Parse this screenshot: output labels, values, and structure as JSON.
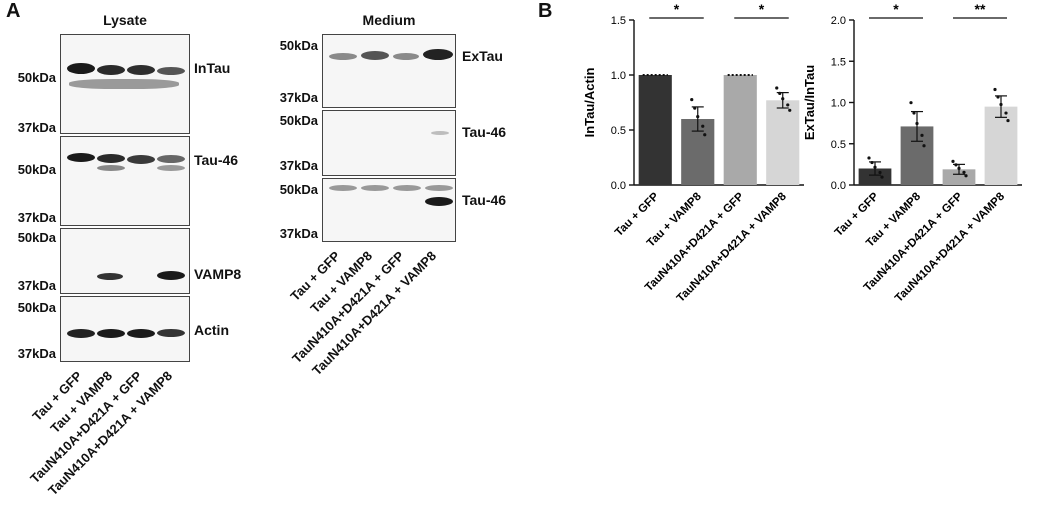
{
  "panel_a": {
    "letter": "A",
    "lysate": {
      "title": "Lysate",
      "blots": [
        {
          "label": "InTau",
          "mw": [
            "50kDa",
            "37kDa"
          ]
        },
        {
          "label": "Tau-46",
          "mw": [
            "50kDa",
            "37kDa"
          ]
        },
        {
          "label": "VAMP8",
          "mw": [
            "50kDa",
            "37kDa"
          ]
        },
        {
          "label": "Actin",
          "mw": [
            "50kDa",
            "37kDa"
          ]
        }
      ],
      "lanes": [
        "Tau + GFP",
        "Tau + VAMP8",
        "TauN410A+D421A + GFP",
        "TauN410A+D421A + VAMP8"
      ]
    },
    "medium": {
      "title": "Medium",
      "blots": [
        {
          "label": "ExTau",
          "mw": [
            "50kDa",
            "37kDa"
          ]
        },
        {
          "label": "Tau-46",
          "mw": [
            "50kDa",
            "37kDa"
          ]
        },
        {
          "label": "Tau-46",
          "mw": [
            "50kDa",
            "37kDa"
          ]
        }
      ],
      "lanes": [
        "Tau + GFP",
        "Tau + VAMP8",
        "TauN410A+D421A + GFP",
        "TauN410A+D421A + VAMP8"
      ]
    }
  },
  "panel_b": {
    "letter": "B"
  },
  "chart_data": [
    {
      "type": "bar",
      "ylabel": "InTau/Actin",
      "ylim": [
        0,
        1.5
      ],
      "yticks": [
        "0.0",
        "0.5",
        "1.0",
        "1.5"
      ],
      "categories": [
        "Tau + GFP",
        "Tau + VAMP8",
        "TauN410A+D421A + GFP",
        "TauN410A+D421A + VAMP8"
      ],
      "values": [
        1.0,
        0.6,
        1.0,
        0.77
      ],
      "errors": [
        0,
        0.11,
        0,
        0.07
      ],
      "colors": [
        "#333333",
        "#6b6b6b",
        "#a9a9a9",
        "#d6d6d6"
      ],
      "significance": [
        {
          "from": 0,
          "to": 1,
          "label": "*"
        },
        {
          "from": 2,
          "to": 3,
          "label": "*"
        }
      ]
    },
    {
      "type": "bar",
      "ylabel": "ExTau/InTau",
      "ylim": [
        0,
        2.0
      ],
      "yticks": [
        "0.0",
        "0.5",
        "1.0",
        "1.5",
        "2.0"
      ],
      "categories": [
        "Tau + GFP",
        "Tau + VAMP8",
        "TauN410A+D421A + GFP",
        "TauN410A+D421A + VAMP8"
      ],
      "values": [
        0.2,
        0.71,
        0.19,
        0.95
      ],
      "errors": [
        0.08,
        0.18,
        0.06,
        0.13
      ],
      "colors": [
        "#333333",
        "#6b6b6b",
        "#a9a9a9",
        "#d6d6d6"
      ],
      "significance": [
        {
          "from": 0,
          "to": 1,
          "label": "*"
        },
        {
          "from": 2,
          "to": 3,
          "label": "**"
        }
      ]
    }
  ]
}
